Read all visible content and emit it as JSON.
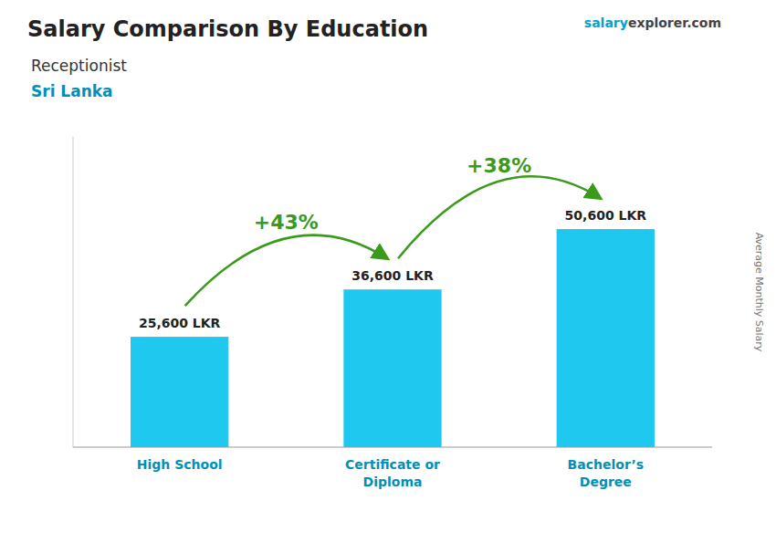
{
  "chart_data": {
    "type": "bar",
    "title": "Salary Comparison By Education",
    "subtitle": [
      "Receptionist",
      "Sri Lanka"
    ],
    "y_label": "Average Monthly Salary",
    "categories": [
      "High School",
      "Certificate or\nDiploma",
      "Bachelor’s\nDegree"
    ],
    "values": [
      25600,
      36600,
      50600
    ],
    "value_labels": [
      "25,600 LKR",
      "36,600 LKR",
      "50,600 LKR"
    ],
    "data_labels": true,
    "color": "#1ec8ee",
    "ylim": [
      0,
      72000
    ],
    "tick_labels": false,
    "grid": false,
    "annotations": [
      {
        "value": 43,
        "label": "+43%"
      },
      {
        "value": 38,
        "label": "+38%"
      }
    ],
    "watermark": [
      {
        "text": "salary",
        "color": "#00a3cc"
      },
      {
        "text": "explorer"
      },
      {
        "text": ".com"
      }
    ]
  }
}
